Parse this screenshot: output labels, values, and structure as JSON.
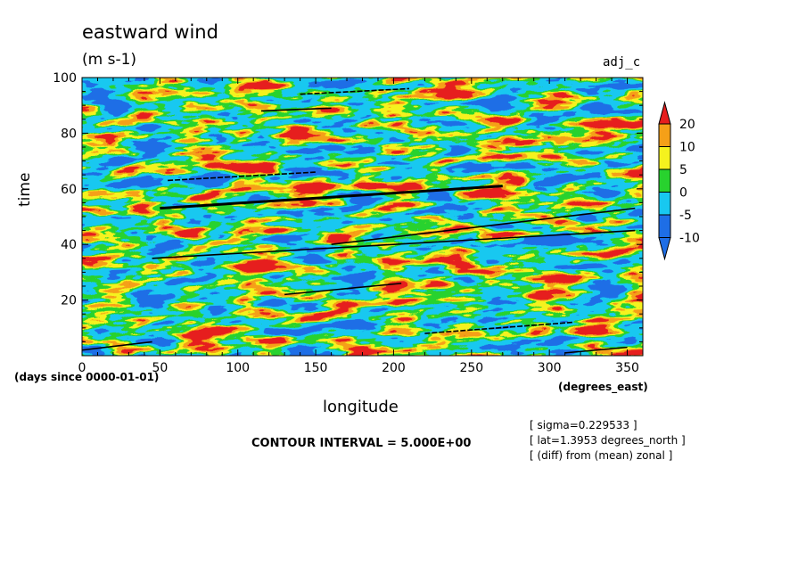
{
  "figure": {
    "title": "eastward wind",
    "units": "(m s-1)",
    "tag": "adj_c",
    "ylabel": "time",
    "xlabel": "longitude",
    "time_units": "(days since 0000-01-01)",
    "x_units": "(degrees_east)",
    "contour_interval": "CONTOUR INTERVAL = 5.000E+00",
    "meta": [
      "[ sigma=0.229533 ]",
      "[ lat=1.3953 degrees_north ]",
      "[ (diff) from (mean) zonal ]"
    ]
  },
  "chart_data": {
    "type": "heatmap",
    "title": "eastward wind",
    "units": "(m s-1)",
    "xlabel": "longitude",
    "ylabel": "time",
    "xlim": [
      0,
      360
    ],
    "ylim": [
      0,
      100
    ],
    "xticks": [
      0,
      50,
      100,
      150,
      200,
      250,
      300,
      350
    ],
    "yticks": [
      20,
      40,
      60,
      80,
      100
    ],
    "colorbar": {
      "levels": [
        -10,
        -5,
        0,
        5,
        10,
        20
      ],
      "colors": [
        "#1e6ee6",
        "#18c8f0",
        "#28d22e",
        "#f5f21e",
        "#f5a018",
        "#e61e1e"
      ],
      "under_color": "#1e6ee6",
      "over_color": "#e61e1e"
    },
    "field_note": "noisy eastward-propagating anomalies, mostly between -10 and 10",
    "black_contours": [
      {
        "x": [
          50,
          270
        ],
        "y": [
          53,
          61
        ]
      },
      {
        "x": [
          55,
          150
        ],
        "y": [
          63,
          66
        ]
      },
      {
        "x": [
          45,
          355
        ],
        "y": [
          35,
          45
        ]
      },
      {
        "x": [
          130,
          205
        ],
        "y": [
          22,
          26
        ]
      },
      {
        "x": [
          220,
          315
        ],
        "y": [
          8,
          12
        ]
      },
      {
        "x": [
          0,
          45
        ],
        "y": [
          2,
          5
        ]
      },
      {
        "x": [
          115,
          160
        ],
        "y": [
          88,
          89
        ]
      },
      {
        "x": [
          140,
          210
        ],
        "y": [
          94,
          96
        ]
      },
      {
        "x": [
          160,
          355
        ],
        "y": [
          40,
          53
        ]
      },
      {
        "x": [
          310,
          350
        ],
        "y": [
          1,
          3
        ]
      }
    ]
  }
}
